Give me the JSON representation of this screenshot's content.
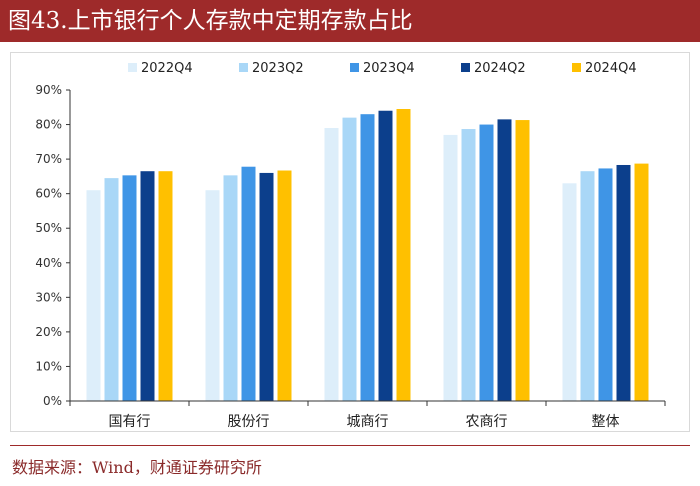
{
  "figure": {
    "title": "图43.上市银行个人存款中定期存款占比",
    "source": "数据来源：Wind，财通证券研究所"
  },
  "colors": {
    "title_bg": "#9e2a2a",
    "series": [
      "#ddeefa",
      "#a9d7f7",
      "#3f95e6",
      "#0c3f8c",
      "#ffc000"
    ]
  },
  "chart_data": {
    "type": "bar",
    "categories": [
      "国有行",
      "股份行",
      "城商行",
      "农商行",
      "整体"
    ],
    "series": [
      {
        "name": "2022Q4",
        "values": [
          61.0,
          61.0,
          79.0,
          77.0,
          63.0
        ]
      },
      {
        "name": "2023Q2",
        "values": [
          64.5,
          65.3,
          82.0,
          78.7,
          66.5
        ]
      },
      {
        "name": "2023Q4",
        "values": [
          65.3,
          67.8,
          83.0,
          80.0,
          67.3
        ]
      },
      {
        "name": "2024Q2",
        "values": [
          66.5,
          66.0,
          84.0,
          81.5,
          68.3
        ]
      },
      {
        "name": "2024Q4",
        "values": [
          66.5,
          66.7,
          84.5,
          81.3,
          68.7
        ]
      }
    ],
    "ylim": [
      0,
      90
    ],
    "yticks": [
      "0%",
      "10%",
      "20%",
      "30%",
      "40%",
      "50%",
      "60%",
      "70%",
      "80%",
      "90%"
    ],
    "legend_position": "top",
    "grid": false
  }
}
